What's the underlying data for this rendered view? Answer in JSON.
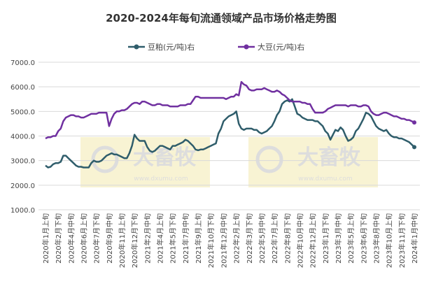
{
  "chart_data": {
    "type": "line",
    "title": "2020-2024年每旬流通领域产品市场价格走势图",
    "watermarks": [
      "大畜牧",
      "www.dxumu.com"
    ],
    "ylim": [
      1000,
      7000
    ],
    "yticks": [
      {
        "value": 1000,
        "label": "1000.0"
      },
      {
        "value": 2000,
        "label": "2000.0"
      },
      {
        "value": 3000,
        "label": "3000.0"
      },
      {
        "value": 4000,
        "label": "4000.0"
      },
      {
        "value": 5000,
        "label": "5000.0"
      },
      {
        "value": 6000,
        "label": "6000.0"
      },
      {
        "value": 7000,
        "label": "7000.0"
      }
    ],
    "grid": true,
    "legend": "top",
    "categories": [
      "2020年1月上旬",
      null,
      null,
      null,
      null,
      "2020年2月下旬",
      null,
      null,
      null,
      null,
      "2020年4月中旬",
      null,
      null,
      null,
      null,
      "2020年6月上旬",
      null,
      null,
      null,
      null,
      "2020年7月下旬",
      null,
      null,
      null,
      null,
      "2020年9月中旬",
      null,
      null,
      null,
      null,
      "2020年11月上旬",
      null,
      null,
      null,
      null,
      "2020年12月下旬",
      null,
      null,
      null,
      null,
      "2021年2月中旬",
      null,
      null,
      null,
      null,
      "2021年4月上旬",
      null,
      null,
      null,
      null,
      "2021年5月下旬",
      null,
      null,
      null,
      null,
      "2021年7月中旬",
      null,
      null,
      null,
      null,
      "2021年9月上旬",
      null,
      null,
      null,
      null,
      "2021年10月下旬",
      null,
      null,
      null,
      null,
      "2021年12月中旬",
      null,
      null,
      null,
      null,
      "2022年2月上旬",
      null,
      null,
      null,
      null,
      "2022年3月下旬",
      null,
      null,
      null,
      null,
      "2022年5月中旬",
      null,
      null,
      null,
      null,
      "2022年7月上旬",
      null,
      null,
      null,
      null,
      "2022年8月下旬",
      null,
      null,
      null,
      null,
      "2022年10月中旬",
      null,
      null,
      null,
      null,
      "2022年12月上旬",
      null,
      null,
      null,
      null,
      "2023年1月下旬",
      null,
      null,
      null,
      null,
      "2023年3月中旬",
      null,
      null,
      null,
      null,
      "2023年5月上旬",
      null,
      null,
      null,
      null,
      "2023年6月下旬",
      null,
      null,
      null,
      null,
      "2023年8月中旬",
      null,
      null,
      null,
      null,
      "2023年10月上旬",
      null,
      null,
      null,
      null,
      "2023年11月下旬",
      null,
      null,
      null,
      null,
      "2024年1月中旬"
    ],
    "series": [
      {
        "name": "豆粕(元/吨)右",
        "color": "#2f5d6b",
        "values": [
          2800,
          2720,
          2750,
          2850,
          2900,
          2900,
          2950,
          3200,
          3200,
          3100,
          3000,
          2900,
          2800,
          2750,
          2750,
          2720,
          2720,
          2720,
          2900,
          3000,
          2950,
          2950,
          3000,
          3100,
          3200,
          3250,
          3300,
          3250,
          3250,
          3200,
          3150,
          3100,
          3100,
          3300,
          3600,
          4050,
          3900,
          3800,
          3800,
          3800,
          3550,
          3400,
          3350,
          3400,
          3500,
          3600,
          3600,
          3550,
          3500,
          3450,
          3600,
          3600,
          3650,
          3700,
          3750,
          3850,
          3800,
          3700,
          3600,
          3450,
          3420,
          3450,
          3450,
          3500,
          3550,
          3600,
          3650,
          3700,
          4100,
          4300,
          4600,
          4700,
          4800,
          4850,
          4900,
          5000,
          4500,
          4300,
          4250,
          4300,
          4300,
          4300,
          4250,
          4250,
          4150,
          4100,
          4150,
          4200,
          4300,
          4400,
          4600,
          4850,
          5000,
          5300,
          5400,
          5450,
          5400,
          5500,
          5200,
          4900,
          4850,
          4750,
          4700,
          4650,
          4650,
          4650,
          4600,
          4600,
          4500,
          4400,
          4200,
          4100,
          3850,
          4050,
          4250,
          4200,
          4350,
          4250,
          4000,
          3800,
          3850,
          3950,
          4200,
          4300,
          4500,
          4700,
          4950,
          4900,
          4800,
          4600,
          4400,
          4300,
          4250,
          4200,
          4250,
          4100,
          4000,
          3950,
          3950,
          3900,
          3900,
          3850,
          3800,
          3750,
          3650,
          3550
        ]
      },
      {
        "name": "大豆(元/吨)右",
        "color": "#7030a0",
        "values": [
          3900,
          3950,
          3950,
          4000,
          4000,
          4200,
          4300,
          4600,
          4750,
          4800,
          4850,
          4850,
          4800,
          4800,
          4750,
          4750,
          4800,
          4850,
          4900,
          4900,
          4900,
          4950,
          4950,
          4950,
          4950,
          4400,
          4700,
          4900,
          5000,
          5000,
          5050,
          5050,
          5100,
          5200,
          5300,
          5350,
          5350,
          5300,
          5400,
          5400,
          5350,
          5300,
          5250,
          5250,
          5300,
          5300,
          5250,
          5250,
          5250,
          5200,
          5200,
          5200,
          5200,
          5250,
          5250,
          5250,
          5300,
          5300,
          5450,
          5600,
          5600,
          5550,
          5550,
          5550,
          5550,
          5550,
          5550,
          5550,
          5550,
          5550,
          5550,
          5500,
          5550,
          5600,
          5600,
          5700,
          5650,
          6200,
          6100,
          6050,
          5900,
          5850,
          5850,
          5900,
          5900,
          5900,
          5950,
          5900,
          5850,
          5800,
          5800,
          5850,
          5800,
          5700,
          5650,
          5550,
          5450,
          5400,
          5400,
          5400,
          5400,
          5350,
          5350,
          5300,
          5300,
          5100,
          4950,
          4950,
          4950,
          4950,
          5000,
          5100,
          5150,
          5200,
          5250,
          5250,
          5250,
          5250,
          5250,
          5200,
          5250,
          5250,
          5250,
          5200,
          5200,
          5250,
          5250,
          5200,
          5000,
          4900,
          4850,
          4850,
          4900,
          4950,
          4950,
          4900,
          4850,
          4800,
          4800,
          4750,
          4700,
          4700,
          4650,
          4650,
          4600,
          4550
        ]
      }
    ]
  }
}
